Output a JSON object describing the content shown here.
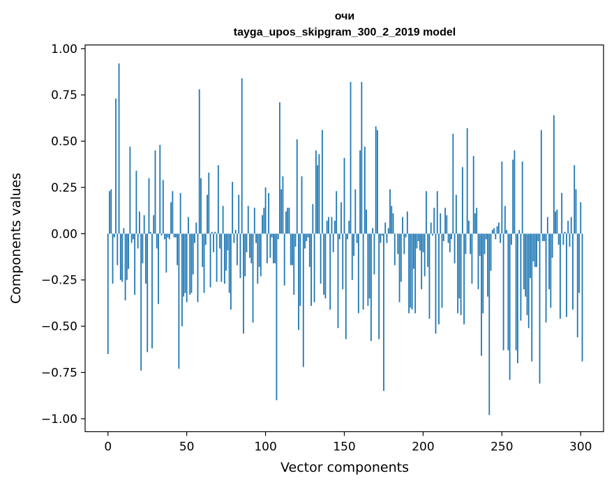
{
  "chart_data": {
    "type": "bar",
    "title": "очи",
    "subtitle": "tayga_upos_skipgram_300_2_2019 model",
    "xlabel": "Vector components",
    "ylabel": "Components values",
    "xlim": [
      -14.5,
      314.5
    ],
    "ylim": [
      -1.07,
      1.02
    ],
    "xticks": [
      0,
      50,
      100,
      150,
      200,
      250,
      300
    ],
    "yticks": [
      1.0,
      0.75,
      0.5,
      0.25,
      0.0,
      -0.25,
      -0.5,
      -0.75,
      -1.0
    ],
    "xtick_labels": [
      "0",
      "50",
      "100",
      "150",
      "200",
      "250",
      "300"
    ],
    "ytick_labels": [
      "1.00",
      "0.75",
      "0.50",
      "0.25",
      "0.00",
      "−0.25",
      "−0.50",
      "−0.75",
      "−1.00"
    ],
    "bar_color": "#1f77b4",
    "grid": false,
    "values": [
      -0.65,
      0.23,
      0.24,
      -0.27,
      -0.02,
      0.73,
      -0.17,
      0.92,
      -0.25,
      -0.26,
      0.03,
      -0.36,
      -0.25,
      -0.19,
      0.47,
      -0.05,
      -0.03,
      -0.33,
      0.34,
      -0.08,
      0.12,
      -0.74,
      -0.16,
      0.1,
      -0.27,
      -0.64,
      0.3,
      0.01,
      -0.62,
      0.1,
      0.45,
      -0.08,
      -0.38,
      0.48,
      -0.01,
      0.29,
      -0.03,
      -0.21,
      -0.02,
      -0.03,
      0.17,
      0.23,
      -0.02,
      -0.02,
      -0.17,
      -0.73,
      0.22,
      -0.5,
      -0.34,
      -0.32,
      -0.37,
      0.09,
      -0.33,
      -0.32,
      -0.22,
      -0.05,
      0.06,
      -0.37,
      0.78,
      0.3,
      -0.18,
      -0.32,
      -0.06,
      0.21,
      0.33,
      -0.29,
      0.01,
      -0.1,
      0.01,
      -0.26,
      0.37,
      -0.08,
      -0.26,
      0.15,
      -0.27,
      -0.2,
      -0.09,
      -0.32,
      -0.41,
      0.28,
      -0.05,
      0.02,
      -0.17,
      0.21,
      -0.24,
      0.84,
      -0.54,
      -0.23,
      -0.1,
      0.15,
      -0.13,
      -0.16,
      -0.48,
      0.14,
      -0.05,
      -0.27,
      -0.18,
      -0.23,
      0.1,
      0.14,
      0.25,
      -0.16,
      0.22,
      -0.13,
      -0.02,
      -0.16,
      -0.16,
      -0.9,
      -0.03,
      0.71,
      0.24,
      0.31,
      -0.28,
      0.12,
      0.14,
      0.14,
      -0.17,
      -0.17,
      -0.33,
      -0.07,
      0.51,
      -0.52,
      -0.39,
      0.31,
      -0.72,
      -0.08,
      -0.04,
      -0.02,
      -0.18,
      -0.39,
      0.16,
      -0.37,
      0.45,
      0.37,
      0.43,
      -0.27,
      0.56,
      -0.33,
      -0.35,
      0.07,
      0.09,
      -0.41,
      0.09,
      -0.1,
      0.07,
      0.23,
      -0.51,
      -0.03,
      0.17,
      -0.3,
      0.41,
      -0.57,
      -0.03,
      0.07,
      0.82,
      -0.25,
      -0.12,
      0.24,
      -0.05,
      -0.43,
      0.45,
      0.82,
      -0.41,
      0.47,
      0.13,
      -0.39,
      -0.35,
      -0.58,
      0.03,
      -0.22,
      0.58,
      0.56,
      -0.57,
      -0.05,
      -0.01,
      -0.85,
      0.06,
      -0.05,
      0.03,
      0.24,
      0.15,
      0.11,
      -0.17,
      0.0,
      -0.11,
      -0.37,
      -0.26,
      0.09,
      -0.11,
      -0.02,
      0.12,
      -0.43,
      -0.4,
      -0.41,
      -0.19,
      -0.43,
      -0.08,
      -0.04,
      -0.09,
      -0.3,
      -0.1,
      -0.23,
      0.23,
      -0.18,
      -0.46,
      0.06,
      -0.01,
      0.14,
      -0.54,
      0.23,
      -0.49,
      0.11,
      -0.4,
      -0.04,
      0.14,
      0.1,
      -0.05,
      -0.1,
      -0.03,
      0.54,
      -0.16,
      0.21,
      -0.43,
      -0.35,
      -0.44,
      0.36,
      -0.49,
      -0.11,
      0.57,
      0.07,
      -0.11,
      -0.27,
      0.42,
      0.11,
      0.14,
      -0.3,
      -0.12,
      -0.66,
      -0.43,
      -0.11,
      -0.03,
      -0.34,
      -0.98,
      -0.2,
      0.02,
      0.03,
      -0.03,
      0.04,
      0.06,
      -0.05,
      0.39,
      -0.63,
      0.15,
      0.02,
      -0.63,
      -0.79,
      -0.06,
      0.4,
      0.45,
      -0.63,
      -0.7,
      0.02,
      -0.47,
      0.39,
      -0.3,
      -0.34,
      -0.44,
      -0.51,
      -0.24,
      -0.69,
      -0.15,
      -0.18,
      -0.18,
      -0.04,
      -0.81,
      0.56,
      -0.04,
      -0.04,
      -0.48,
      0.09,
      -0.3,
      -0.4,
      -0.13,
      0.64,
      0.12,
      0.13,
      -0.06,
      -0.46,
      0.22,
      -0.06,
      0.01,
      -0.45,
      0.07,
      -0.07,
      0.09,
      -0.41,
      0.37,
      0.24,
      -0.56,
      -0.32,
      0.17,
      -0.69
    ]
  }
}
